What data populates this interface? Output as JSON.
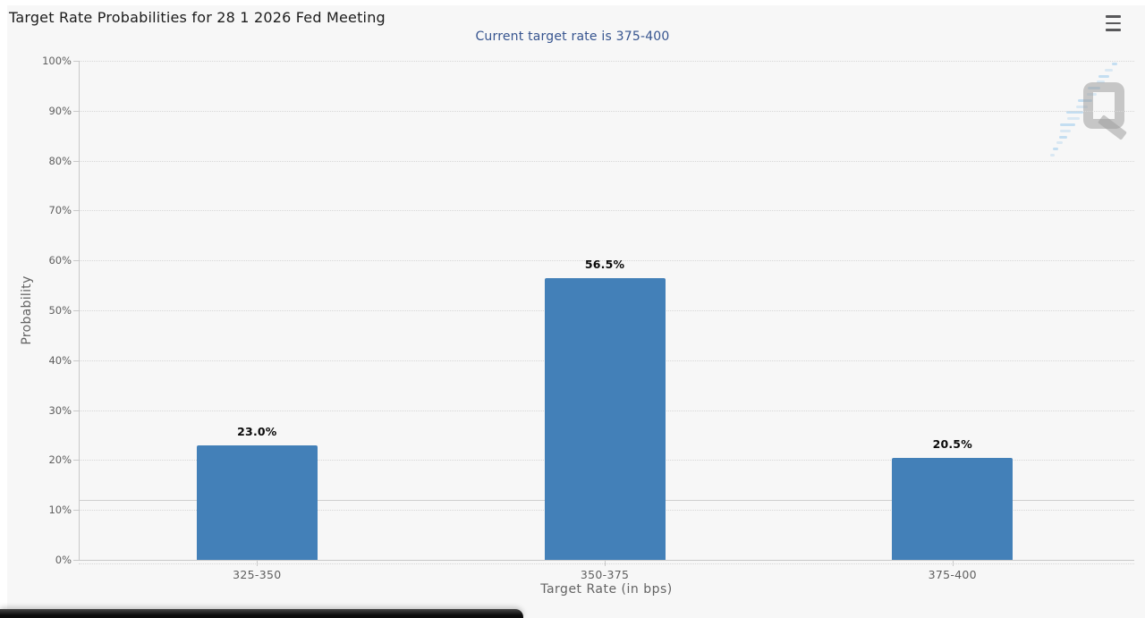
{
  "chart_data": {
    "type": "bar",
    "title": "Target Rate Probabilities for 28 1 2026 Fed Meeting",
    "subtitle": "Current target rate is 375-400",
    "categories": [
      "325-350",
      "350-375",
      "375-400"
    ],
    "values": [
      23.0,
      56.5,
      20.5
    ],
    "data_labels": [
      "23.0%",
      "56.5%",
      "20.5%"
    ],
    "xlabel": "Target Rate (in bps)",
    "ylabel": "Probability",
    "ylim": [
      0,
      100
    ],
    "yticks": [
      0,
      10,
      20,
      30,
      40,
      50,
      60,
      70,
      80,
      90,
      100
    ],
    "ytick_suffix": "%",
    "grid": "horizontal-dotted",
    "legend": "none",
    "bar_color": "#4380b8",
    "reference_line_pct": 12.0
  },
  "icons": {
    "menu": "hamburger-menu-icon",
    "watermark": "quikstrike-q-logo-watermark"
  }
}
